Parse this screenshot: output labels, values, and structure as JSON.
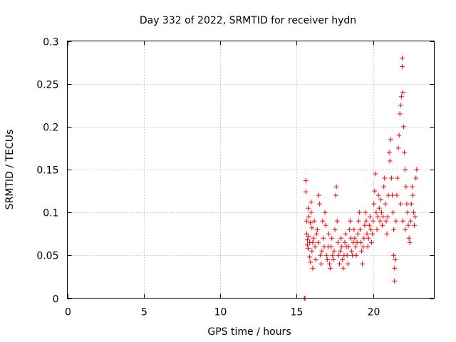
{
  "chart_data": {
    "type": "scatter",
    "title": "Day 332 of 2022, SRMTID for receiver hydn",
    "xlabel": "GPS time / hours",
    "ylabel": "SRMTID / TECUs",
    "xlim": [
      0,
      24
    ],
    "ylim": [
      0,
      0.3
    ],
    "grid": true,
    "xticks": [
      0,
      5,
      10,
      15,
      20
    ],
    "xtick_labels": [
      "0",
      "5",
      "10",
      "15",
      "20"
    ],
    "yticks": [
      0,
      0.05,
      0.1,
      0.15,
      0.2,
      0.25,
      0.3
    ],
    "ytick_labels": [
      "0",
      "0.05",
      "0.1",
      "0.15",
      "0.2",
      "0.25",
      "0.3"
    ],
    "marker": "+",
    "color": "#ff0000",
    "series": [
      {
        "name": "SRMTID",
        "points": [
          [
            15.5,
            0.0
          ],
          [
            15.55,
            0.0
          ],
          [
            15.6,
            0.137
          ],
          [
            15.6,
            0.124
          ],
          [
            15.65,
            0.09
          ],
          [
            15.65,
            0.075
          ],
          [
            15.7,
            0.068
          ],
          [
            15.7,
            0.062
          ],
          [
            15.75,
            0.058
          ],
          [
            15.75,
            0.105
          ],
          [
            15.8,
            0.095
          ],
          [
            15.8,
            0.072
          ],
          [
            15.85,
            0.065
          ],
          [
            15.85,
            0.048
          ],
          [
            15.9,
            0.042
          ],
          [
            15.9,
            0.088
          ],
          [
            15.95,
            0.1
          ],
          [
            15.95,
            0.112
          ],
          [
            16.0,
            0.082
          ],
          [
            16.0,
            0.055
          ],
          [
            16.05,
            0.035
          ],
          [
            16.05,
            0.065
          ],
          [
            16.1,
            0.07
          ],
          [
            16.15,
            0.09
          ],
          [
            16.2,
            0.06
          ],
          [
            16.25,
            0.045
          ],
          [
            16.3,
            0.075
          ],
          [
            16.35,
            0.08
          ],
          [
            16.4,
            0.065
          ],
          [
            16.45,
            0.12
          ],
          [
            16.5,
            0.11
          ],
          [
            16.55,
            0.05
          ],
          [
            16.6,
            0.04
          ],
          [
            16.65,
            0.055
          ],
          [
            16.7,
            0.09
          ],
          [
            16.75,
            0.07
          ],
          [
            16.8,
            0.06
          ],
          [
            16.85,
            0.1
          ],
          [
            16.9,
            0.085
          ],
          [
            16.95,
            0.05
          ],
          [
            17.0,
            0.045
          ],
          [
            17.05,
            0.06
          ],
          [
            17.1,
            0.075
          ],
          [
            17.15,
            0.04
          ],
          [
            17.2,
            0.035
          ],
          [
            17.25,
            0.06
          ],
          [
            17.3,
            0.07
          ],
          [
            17.35,
            0.05
          ],
          [
            17.4,
            0.045
          ],
          [
            17.45,
            0.055
          ],
          [
            17.5,
            0.08
          ],
          [
            17.55,
            0.12
          ],
          [
            17.6,
            0.13
          ],
          [
            17.65,
            0.09
          ],
          [
            17.7,
            0.065
          ],
          [
            17.75,
            0.05
          ],
          [
            17.8,
            0.04
          ],
          [
            17.85,
            0.055
          ],
          [
            17.9,
            0.07
          ],
          [
            17.95,
            0.06
          ],
          [
            18.0,
            0.045
          ],
          [
            18.05,
            0.035
          ],
          [
            18.1,
            0.05
          ],
          [
            18.15,
            0.065
          ],
          [
            18.2,
            0.075
          ],
          [
            18.25,
            0.06
          ],
          [
            18.3,
            0.05
          ],
          [
            18.35,
            0.04
          ],
          [
            18.4,
            0.06
          ],
          [
            18.45,
            0.08
          ],
          [
            18.5,
            0.09
          ],
          [
            18.55,
            0.07
          ],
          [
            18.6,
            0.055
          ],
          [
            18.65,
            0.05
          ],
          [
            18.7,
            0.065
          ],
          [
            18.75,
            0.08
          ],
          [
            18.8,
            0.07
          ],
          [
            18.85,
            0.06
          ],
          [
            18.9,
            0.05
          ],
          [
            18.95,
            0.065
          ],
          [
            19.0,
            0.075
          ],
          [
            19.05,
            0.09
          ],
          [
            19.1,
            0.1
          ],
          [
            19.15,
            0.08
          ],
          [
            19.2,
            0.065
          ],
          [
            19.25,
            0.055
          ],
          [
            19.3,
            0.04
          ],
          [
            19.35,
            0.06
          ],
          [
            19.4,
            0.07
          ],
          [
            19.45,
            0.085
          ],
          [
            19.5,
            0.1
          ],
          [
            19.55,
            0.09
          ],
          [
            19.6,
            0.075
          ],
          [
            19.65,
            0.06
          ],
          [
            19.7,
            0.07
          ],
          [
            19.75,
            0.085
          ],
          [
            19.8,
            0.095
          ],
          [
            19.85,
            0.08
          ],
          [
            19.9,
            0.065
          ],
          [
            19.95,
            0.075
          ],
          [
            20.0,
            0.09
          ],
          [
            20.05,
            0.11
          ],
          [
            20.1,
            0.125
          ],
          [
            20.15,
            0.145
          ],
          [
            20.2,
            0.1
          ],
          [
            20.25,
            0.08
          ],
          [
            20.3,
            0.095
          ],
          [
            20.35,
            0.12
          ],
          [
            20.4,
            0.105
          ],
          [
            20.45,
            0.09
          ],
          [
            20.5,
            0.115
          ],
          [
            20.55,
            0.1
          ],
          [
            20.6,
            0.085
          ],
          [
            20.65,
            0.095
          ],
          [
            20.7,
            0.13
          ],
          [
            20.75,
            0.14
          ],
          [
            20.8,
            0.11
          ],
          [
            20.85,
            0.09
          ],
          [
            20.9,
            0.075
          ],
          [
            20.95,
            0.095
          ],
          [
            21.0,
            0.12
          ],
          [
            21.05,
            0.17
          ],
          [
            21.1,
            0.16
          ],
          [
            21.15,
            0.185
          ],
          [
            21.2,
            0.14
          ],
          [
            21.25,
            0.12
          ],
          [
            21.3,
            0.1
          ],
          [
            21.35,
            0.08
          ],
          [
            21.35,
            0.05
          ],
          [
            21.4,
            0.035
          ],
          [
            21.4,
            0.02
          ],
          [
            21.45,
            0.045
          ],
          [
            21.5,
            0.09
          ],
          [
            21.55,
            0.12
          ],
          [
            21.6,
            0.14
          ],
          [
            21.65,
            0.175
          ],
          [
            21.7,
            0.19
          ],
          [
            21.75,
            0.215
          ],
          [
            21.8,
            0.225
          ],
          [
            21.85,
            0.235
          ],
          [
            21.9,
            0.28
          ],
          [
            21.9,
            0.27
          ],
          [
            21.95,
            0.24
          ],
          [
            22.0,
            0.2
          ],
          [
            22.05,
            0.17
          ],
          [
            22.1,
            0.15
          ],
          [
            22.15,
            0.13
          ],
          [
            22.2,
            0.11
          ],
          [
            22.25,
            0.1
          ],
          [
            22.3,
            0.085
          ],
          [
            22.35,
            0.07
          ],
          [
            22.4,
            0.065
          ],
          [
            22.45,
            0.09
          ],
          [
            22.5,
            0.11
          ],
          [
            22.55,
            0.13
          ],
          [
            22.6,
            0.12
          ],
          [
            22.65,
            0.1
          ],
          [
            22.7,
            0.085
          ],
          [
            22.75,
            0.095
          ],
          [
            22.8,
            0.14
          ],
          [
            22.85,
            0.15
          ],
          [
            21.8,
            0.11
          ],
          [
            21.95,
            0.09
          ],
          [
            22.1,
            0.08
          ]
        ]
      }
    ]
  }
}
